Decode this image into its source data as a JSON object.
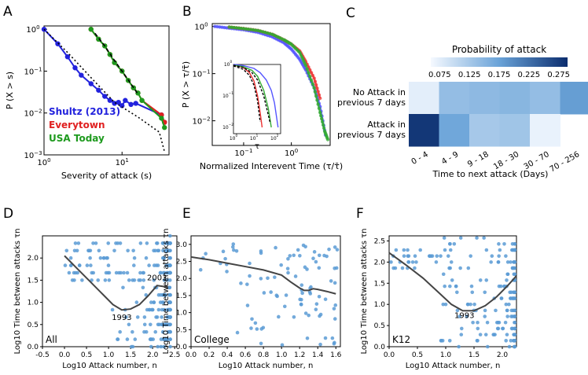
{
  "panels": [
    {
      "letter": "A",
      "xlabel": "Severity of attack (s)",
      "ylabel": "P (X > s)"
    },
    {
      "letter": "B",
      "xlabel": "Normalized Interevent Time (τ/τ̄)",
      "ylabel": "P (X > τ/τ̄)"
    },
    {
      "letter": "C"
    },
    {
      "letter": "D"
    },
    {
      "letter": "E"
    },
    {
      "letter": "F"
    }
  ],
  "chart_data": [
    {
      "id": "A",
      "type": "line",
      "xscale": "log",
      "yscale": "log",
      "xlim": [
        1,
        40
      ],
      "ylim": [
        0.001,
        1.2
      ],
      "xticks": [
        {
          "v": 1,
          "label": "10^0"
        },
        {
          "v": 10,
          "label": "10^1"
        }
      ],
      "yticks": [
        {
          "v": 1,
          "label": "10^0"
        },
        {
          "v": 0.1,
          "label": "10^-1"
        },
        {
          "v": 0.01,
          "label": "10^-2"
        },
        {
          "v": 0.001,
          "label": "10^-3"
        }
      ],
      "xlabel": "Severity of attack (s)",
      "ylabel": "P (X > s)",
      "legend": [
        "Shultz (2013)",
        "Everytown",
        "USA Today"
      ],
      "legend_position": "bottom-left",
      "series": [
        {
          "name": "Shultz (2013)",
          "color": "#2222dd",
          "x": [
            1,
            1.5,
            2,
            2.5,
            3,
            4,
            5,
            6,
            7,
            8,
            9,
            10,
            11,
            13,
            15,
            32,
            35
          ],
          "y": [
            1,
            0.45,
            0.22,
            0.12,
            0.08,
            0.05,
            0.035,
            0.025,
            0.02,
            0.017,
            0.018,
            0.015,
            0.02,
            0.016,
            0.017,
            0.009,
            0.006
          ]
        },
        {
          "name": "Everytown",
          "color": "#e02020",
          "x": [
            4,
            5,
            6,
            7,
            8,
            10,
            12,
            14,
            16,
            18,
            32,
            35
          ],
          "y": [
            1,
            0.58,
            0.4,
            0.25,
            0.16,
            0.1,
            0.06,
            0.04,
            0.03,
            0.02,
            0.009,
            0.006
          ]
        },
        {
          "name": "USA Today",
          "color": "#1e9a1e",
          "x": [
            4,
            5,
            6,
            7,
            8,
            10,
            12,
            14,
            16,
            18,
            32,
            35
          ],
          "y": [
            1,
            0.58,
            0.4,
            0.25,
            0.16,
            0.1,
            0.06,
            0.04,
            0.03,
            0.02,
            0.0075,
            0.0045
          ]
        },
        {
          "name": "fit1",
          "style": "dotted",
          "color": "#000",
          "x": [
            1,
            2,
            4,
            8,
            16,
            30,
            35
          ],
          "y": [
            1,
            0.28,
            0.07,
            0.018,
            0.008,
            0.0035,
            0.0012
          ]
        },
        {
          "name": "fit2",
          "style": "dashed",
          "color": "#000",
          "x": [
            4.5,
            6,
            8,
            10,
            13,
            16
          ],
          "y": [
            0.8,
            0.4,
            0.18,
            0.1,
            0.05,
            0.028
          ]
        }
      ]
    },
    {
      "id": "B",
      "type": "line",
      "xscale": "log",
      "yscale": "log",
      "xlim": [
        0.022,
        6.5
      ],
      "ylim": [
        0.003,
        1.15
      ],
      "xticks": [
        {
          "v": 0.1,
          "label": "10^-1"
        },
        {
          "v": 1,
          "label": "10^0"
        }
      ],
      "yticks": [
        {
          "v": 1,
          "label": "10^0"
        },
        {
          "v": 0.1,
          "label": "10^-1"
        },
        {
          "v": 0.01,
          "label": "10^-2"
        }
      ],
      "xlabel": "Normalized Interevent Time (τ/τ̄)",
      "ylabel": "P (X > τ/τ̄)",
      "series": [
        {
          "name": "blue",
          "color": "#5555ff",
          "x": [
            0.025,
            0.05,
            0.1,
            0.2,
            0.4,
            0.7,
            1,
            1.5,
            2,
            3,
            4,
            5.2
          ],
          "y": [
            1,
            0.92,
            0.85,
            0.75,
            0.6,
            0.45,
            0.33,
            0.2,
            0.12,
            0.05,
            0.02,
            0.005
          ]
        },
        {
          "name": "red",
          "color": "#ee3333",
          "x": [
            0.05,
            0.1,
            0.2,
            0.4,
            0.7,
            1,
            1.5,
            2,
            3,
            4
          ],
          "y": [
            0.97,
            0.9,
            0.82,
            0.68,
            0.52,
            0.42,
            0.3,
            0.18,
            0.08,
            0.03
          ]
        },
        {
          "name": "green",
          "color": "#33aa33",
          "x": [
            0.05,
            0.1,
            0.2,
            0.4,
            0.7,
            1,
            1.5,
            2,
            3,
            4,
            5,
            5.8
          ],
          "y": [
            0.97,
            0.9,
            0.82,
            0.68,
            0.52,
            0.42,
            0.28,
            0.15,
            0.05,
            0.015,
            0.006,
            0.004
          ]
        }
      ],
      "inset": {
        "xlabel": "τ",
        "xticks": [
          "10^0",
          "10^1",
          "10^2"
        ],
        "yticks": [
          "10^0",
          "10^-1",
          "10^-2"
        ],
        "series": [
          {
            "color": "#5555ff",
            "x": [
              1,
              3,
              10,
              20,
              40,
              70,
              100,
              150
            ],
            "y": [
              1,
              0.92,
              0.75,
              0.55,
              0.32,
              0.15,
              0.06,
              0.01
            ]
          },
          {
            "color": "#ee3333",
            "x": [
              1,
              3,
              6,
              10,
              15,
              20,
              25
            ],
            "y": [
              0.95,
              0.8,
              0.55,
              0.3,
              0.1,
              0.03,
              0.01
            ]
          },
          {
            "color": "#33aa33",
            "x": [
              1,
              3,
              8,
              15,
              30,
              50,
              70
            ],
            "y": [
              0.95,
              0.85,
              0.65,
              0.42,
              0.15,
              0.04,
              0.01
            ]
          },
          {
            "color": "#000",
            "style": "dashed",
            "x": [
              1,
              3,
              8,
              15,
              30,
              60
            ],
            "y": [
              0.95,
              0.8,
              0.55,
              0.32,
              0.1,
              0.015
            ]
          },
          {
            "color": "#000",
            "style": "dashed",
            "x": [
              1,
              3,
              6,
              10,
              15,
              20
            ],
            "y": [
              0.9,
              0.7,
              0.45,
              0.22,
              0.07,
              0.015
            ]
          }
        ]
      }
    },
    {
      "id": "C",
      "type": "heatmap",
      "title": "Probability of attack",
      "colorbar_ticks": [
        "0.075",
        "0.125",
        "0.175",
        "0.225",
        "0.275"
      ],
      "range": [
        0.06,
        0.29
      ],
      "rows": [
        "No Attack in previous 7 days",
        "Attack in previous 7 days"
      ],
      "columns": [
        "0 - 4",
        "4 - 9",
        "9 - 18",
        "18 - 30",
        "30 - 70",
        "70 - 256"
      ],
      "values": [
        [
          0.075,
          0.14,
          0.145,
          0.15,
          0.14,
          0.18
        ],
        [
          0.28,
          0.17,
          0.125,
          0.13,
          0.07,
          null
        ]
      ],
      "xlabel": "Time to next attack (Days)"
    },
    {
      "id": "D",
      "type": "scatter",
      "label": "All",
      "xlim": [
        -0.5,
        2.55
      ],
      "ylim": [
        0,
        2.5
      ],
      "xticks": [
        "-0.5",
        "0.0",
        "0.5",
        "1.0",
        "1.5",
        "2.0",
        "2.5"
      ],
      "yticks": [
        "0.0",
        "0.5",
        "1.0",
        "1.5",
        "2.0"
      ],
      "xlabel": "Log10 Attack number, n",
      "ylabel": "Log10 Time between attacks τn",
      "annotations": [
        {
          "text": "1993",
          "x": 1.3,
          "y": 0.6
        },
        {
          "text": "2003",
          "x": 2.1,
          "y": 1.5
        }
      ],
      "trend": {
        "x": [
          0,
          0.3,
          0.6,
          0.9,
          1.1,
          1.3,
          1.5,
          1.7,
          1.9,
          2.1,
          2.3,
          2.35
        ],
        "y": [
          2.05,
          1.75,
          1.45,
          1.15,
          0.95,
          0.83,
          0.85,
          0.95,
          1.15,
          1.38,
          1.35,
          1.35
        ]
      }
    },
    {
      "id": "E",
      "type": "scatter",
      "label": "College",
      "xlim": [
        0,
        1.65
      ],
      "ylim": [
        0,
        3.25
      ],
      "xticks": [
        "0.0",
        "0.2",
        "0.4",
        "0.6",
        "0.8",
        "1.0",
        "1.2",
        "1.4",
        "1.6"
      ],
      "yticks": [
        "0.0",
        "0.5",
        "1.0",
        "1.5",
        "2.0",
        "2.5",
        "3.0"
      ],
      "xlabel": "Log10 Attack number, n",
      "ylabel": "Log10 Time between attacks τn",
      "trend": {
        "x": [
          0,
          0.2,
          0.4,
          0.6,
          0.8,
          1.0,
          1.1,
          1.2,
          1.25,
          1.3,
          1.35,
          1.4,
          1.5,
          1.6
        ],
        "y": [
          2.63,
          2.55,
          2.45,
          2.35,
          2.25,
          2.1,
          1.9,
          1.72,
          1.65,
          1.65,
          1.7,
          1.68,
          1.62,
          1.55
        ]
      }
    },
    {
      "id": "F",
      "type": "scatter",
      "label": "K12",
      "xlim": [
        0,
        2.25
      ],
      "ylim": [
        0,
        2.62
      ],
      "xticks": [
        "0.0",
        "0.5",
        "1.0",
        "1.5",
        "2.0"
      ],
      "yticks": [
        "0.0",
        "0.5",
        "1.0",
        "1.5",
        "2.0",
        "2.5"
      ],
      "xlabel": "Log10 Attack number, n",
      "ylabel": "Log10 Time between attacks τn",
      "annotations": [
        {
          "text": "1993",
          "x": 1.33,
          "y": 0.68
        }
      ],
      "trend": {
        "x": [
          0,
          0.3,
          0.6,
          0.9,
          1.1,
          1.3,
          1.5,
          1.7,
          1.9,
          2.1,
          2.2,
          2.25
        ],
        "y": [
          2.22,
          1.93,
          1.62,
          1.25,
          1.0,
          0.85,
          0.85,
          0.97,
          1.18,
          1.45,
          1.6,
          1.68
        ]
      }
    }
  ]
}
